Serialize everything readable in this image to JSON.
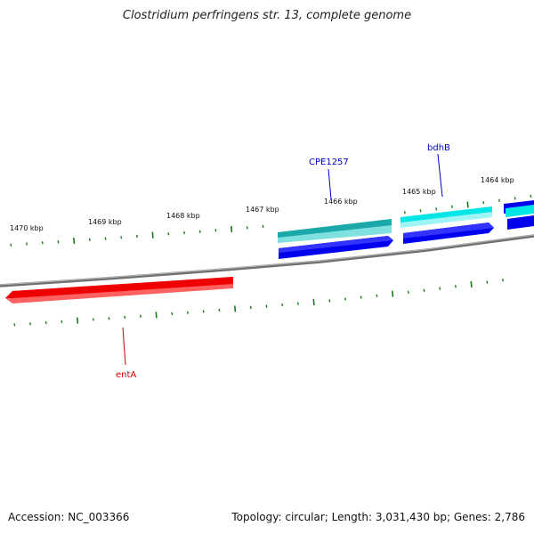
{
  "title": "Clostridium perfringens str. 13, complete genome",
  "footer": {
    "accession": "Accession: NC_003366",
    "summary": "Topology: circular; Length: 3,031,430 bp; Genes: 2,786"
  },
  "colors": {
    "backbone": "#808080",
    "tick": "#1a7a1a",
    "entA": "#ee0000",
    "cyan_gene": "#00e5e5",
    "teal_gene": "#1ab0b0",
    "blue_gene": "#0000ee",
    "label_blue": "#0000cc",
    "label_red": "#cc0000"
  },
  "scale_labels": [
    "1470 kbp",
    "1469 kbp",
    "1468 kbp",
    "1467 kbp",
    "1466 kbp",
    "1465 kbp",
    "1464 kbp"
  ],
  "genes": [
    {
      "name": "entA",
      "strand": "reverse"
    },
    {
      "name": "CPE1257",
      "strand": "forward"
    },
    {
      "name": "bdhB",
      "strand": "forward"
    }
  ]
}
